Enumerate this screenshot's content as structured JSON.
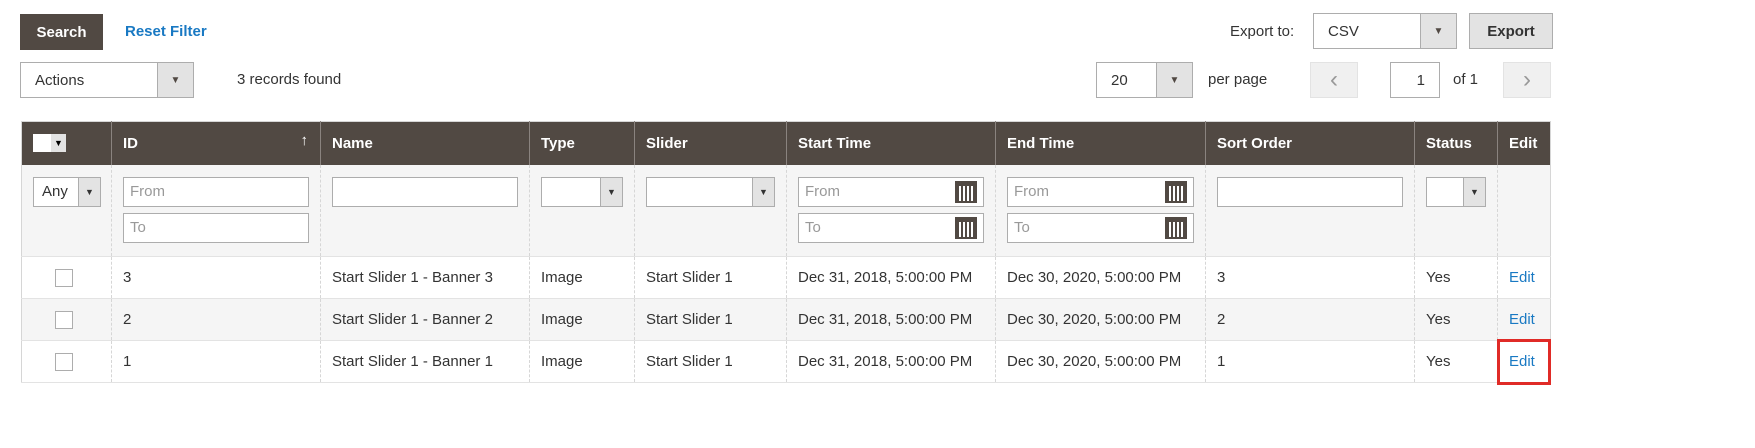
{
  "toolbar": {
    "search": "Search",
    "reset": "Reset Filter",
    "export_label": "Export to:",
    "export_format": "CSV",
    "export_button": "Export",
    "actions": "Actions",
    "records": "3 records found",
    "per_page_value": "20",
    "per_page_label": "per page",
    "page": "1",
    "of": "of 1",
    "prev": "‹",
    "next": "›"
  },
  "columns": [
    "ID",
    "Name",
    "Type",
    "Slider",
    "Start Time",
    "End Time",
    "Sort Order",
    "Status",
    "Edit"
  ],
  "filters": {
    "mass_select": "Any",
    "from": "From",
    "to": "To"
  },
  "rows": [
    {
      "id": "3",
      "name": "Start Slider 1 - Banner 3",
      "type": "Image",
      "slider": "Start Slider 1",
      "start": "Dec 31, 2018, 5:00:00 PM",
      "end": "Dec 30, 2020, 5:00:00 PM",
      "sort": "3",
      "status": "Yes",
      "edit": "Edit"
    },
    {
      "id": "2",
      "name": "Start Slider 1 - Banner 2",
      "type": "Image",
      "slider": "Start Slider 1",
      "start": "Dec 31, 2018, 5:00:00 PM",
      "end": "Dec 30, 2020, 5:00:00 PM",
      "sort": "2",
      "status": "Yes",
      "edit": "Edit"
    },
    {
      "id": "1",
      "name": "Start Slider 1 - Banner 1",
      "type": "Image",
      "slider": "Start Slider 1",
      "start": "Dec 31, 2018, 5:00:00 PM",
      "end": "Dec 30, 2020, 5:00:00 PM",
      "sort": "1",
      "status": "Yes",
      "edit": "Edit"
    }
  ],
  "colors": {
    "header": "#514943",
    "link": "#1979c3",
    "highlight": "#e02b27"
  }
}
